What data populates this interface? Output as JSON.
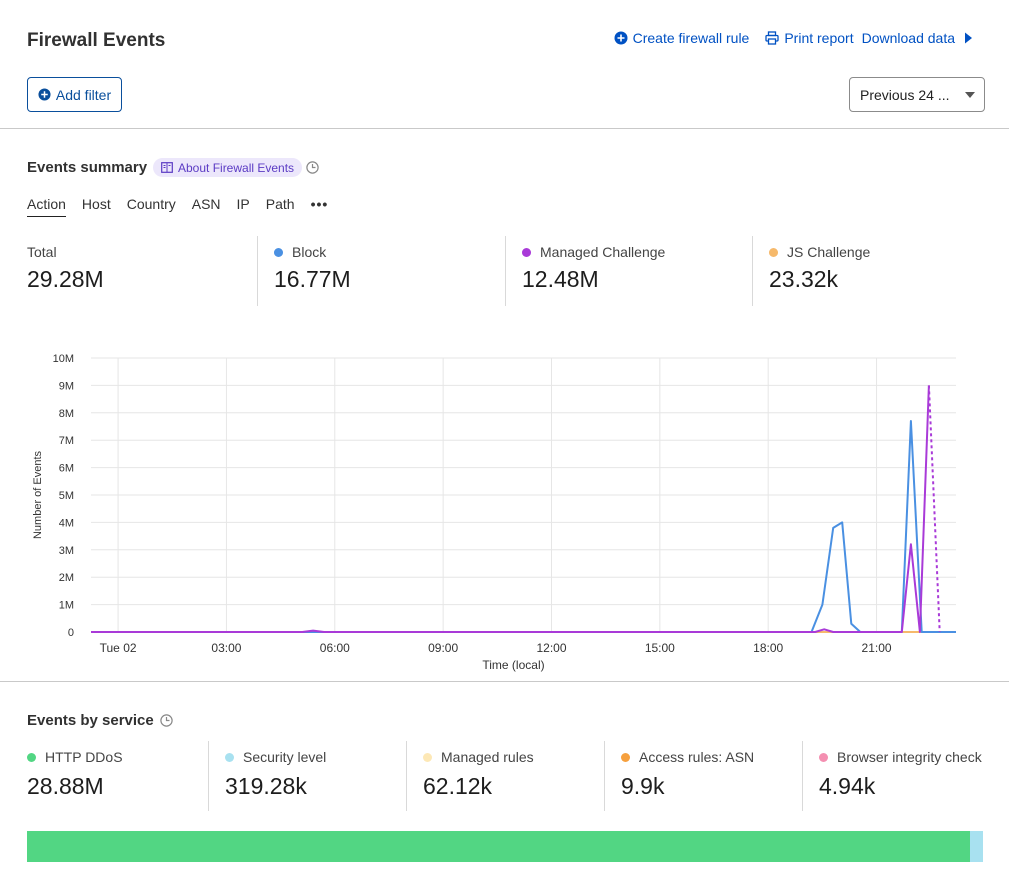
{
  "header": {
    "title": "Firewall Events",
    "actions": {
      "create_rule": "Create firewall rule",
      "print_report": "Print report",
      "download_data": "Download data"
    },
    "add_filter": "Add filter",
    "time_range": "Previous 24 ..."
  },
  "summary": {
    "title": "Events summary",
    "about_label": "About Firewall Events",
    "tabs": [
      "Action",
      "Host",
      "Country",
      "ASN",
      "IP",
      "Path"
    ],
    "active_tab": "Action",
    "stats": [
      {
        "label": "Total",
        "value": "29.28M",
        "color": ""
      },
      {
        "label": "Block",
        "value": "16.77M",
        "color": "#4a90e2"
      },
      {
        "label": "Managed Challenge",
        "value": "12.48M",
        "color": "#a93ad8"
      },
      {
        "label": "JS Challenge",
        "value": "23.32k",
        "color": "#f6b96b"
      }
    ]
  },
  "chart_data": {
    "type": "line",
    "ylabel": "Number of Events",
    "xlabel": "Time (local)",
    "y_ticks": [
      "0",
      "1M",
      "2M",
      "3M",
      "4M",
      "5M",
      "6M",
      "7M",
      "8M",
      "9M",
      "10M"
    ],
    "ylim": [
      0,
      10000000
    ],
    "x_ticks": [
      "Tue 02",
      "03:00",
      "06:00",
      "09:00",
      "12:00",
      "15:00",
      "18:00",
      "21:00"
    ],
    "x_tick_hours": [
      0,
      3,
      6,
      9,
      12,
      15,
      18,
      21
    ],
    "xlim_hours": [
      -0.75,
      23.2
    ],
    "grid": true,
    "series": [
      {
        "name": "Block",
        "color": "#4a90e2",
        "points": [
          [
            -0.75,
            0
          ],
          [
            19.2,
            0
          ],
          [
            19.5,
            1000000
          ],
          [
            19.8,
            3800000
          ],
          [
            20.05,
            4000000
          ],
          [
            20.3,
            300000
          ],
          [
            20.55,
            0
          ],
          [
            21.0,
            0
          ],
          [
            21.7,
            0
          ],
          [
            21.95,
            7700000
          ],
          [
            22.25,
            0
          ],
          [
            23.2,
            0
          ]
        ]
      },
      {
        "name": "Managed Challenge",
        "color": "#a93ad8",
        "points": [
          [
            -0.75,
            0
          ],
          [
            5.1,
            0
          ],
          [
            5.4,
            50000
          ],
          [
            5.7,
            0
          ],
          [
            19.3,
            0
          ],
          [
            19.55,
            100000
          ],
          [
            19.8,
            0
          ],
          [
            21.7,
            0
          ],
          [
            21.95,
            3200000
          ],
          [
            22.2,
            0
          ],
          [
            22.45,
            9000000
          ]
        ],
        "dashed_tail": [
          [
            22.45,
            9000000
          ],
          [
            22.75,
            0
          ]
        ]
      },
      {
        "name": "JS Challenge",
        "color": "#f6b96b",
        "points": [
          [
            -0.75,
            0
          ],
          [
            23.2,
            0
          ]
        ]
      }
    ]
  },
  "services": {
    "title": "Events by service",
    "items": [
      {
        "label": "HTTP DDoS",
        "value": "28.88M",
        "color": "#52d683"
      },
      {
        "label": "Security level",
        "value": "319.28k",
        "color": "#a8e1f0"
      },
      {
        "label": "Managed rules",
        "value": "62.12k",
        "color": "#fde8b6"
      },
      {
        "label": "Access rules: ASN",
        "value": "9.9k",
        "color": "#f6a03e"
      },
      {
        "label": "Browser integrity check",
        "value": "4.94k",
        "color": "#f48fb1"
      }
    ],
    "bar_fractions": [
      0.9865,
      0.0135
    ]
  }
}
